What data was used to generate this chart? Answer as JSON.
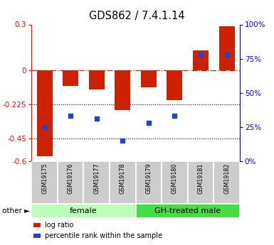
{
  "title": "GDS862 / 7.4.1.14",
  "samples": [
    "GSM19175",
    "GSM19176",
    "GSM19177",
    "GSM19178",
    "GSM19179",
    "GSM19180",
    "GSM19181",
    "GSM19182"
  ],
  "log_ratio": [
    -0.57,
    -0.105,
    -0.13,
    -0.265,
    -0.115,
    -0.2,
    0.13,
    0.29
  ],
  "percentile_rank": [
    25,
    33,
    31,
    15,
    28,
    33,
    78,
    78
  ],
  "groups": [
    {
      "label": "female",
      "start": 0,
      "end": 4,
      "color": "#bbffbb"
    },
    {
      "label": "GH-treated male",
      "start": 4,
      "end": 8,
      "color": "#44dd44"
    }
  ],
  "ylim_left": [
    -0.6,
    0.3
  ],
  "ylim_right": [
    0,
    100
  ],
  "yticks_left": [
    0.3,
    0,
    -0.225,
    -0.45,
    -0.6
  ],
  "yticks_right": [
    100,
    75,
    50,
    25,
    0
  ],
  "hlines": [
    -0.225,
    -0.45
  ],
  "bar_color": "#cc2200",
  "dot_color": "#2244cc",
  "bar_width": 0.6,
  "legend_log_ratio": "log ratio",
  "legend_percentile": "percentile rank within the sample",
  "other_label": "other",
  "sample_box_color": "#cccccc",
  "chart_bg": "#ffffff"
}
